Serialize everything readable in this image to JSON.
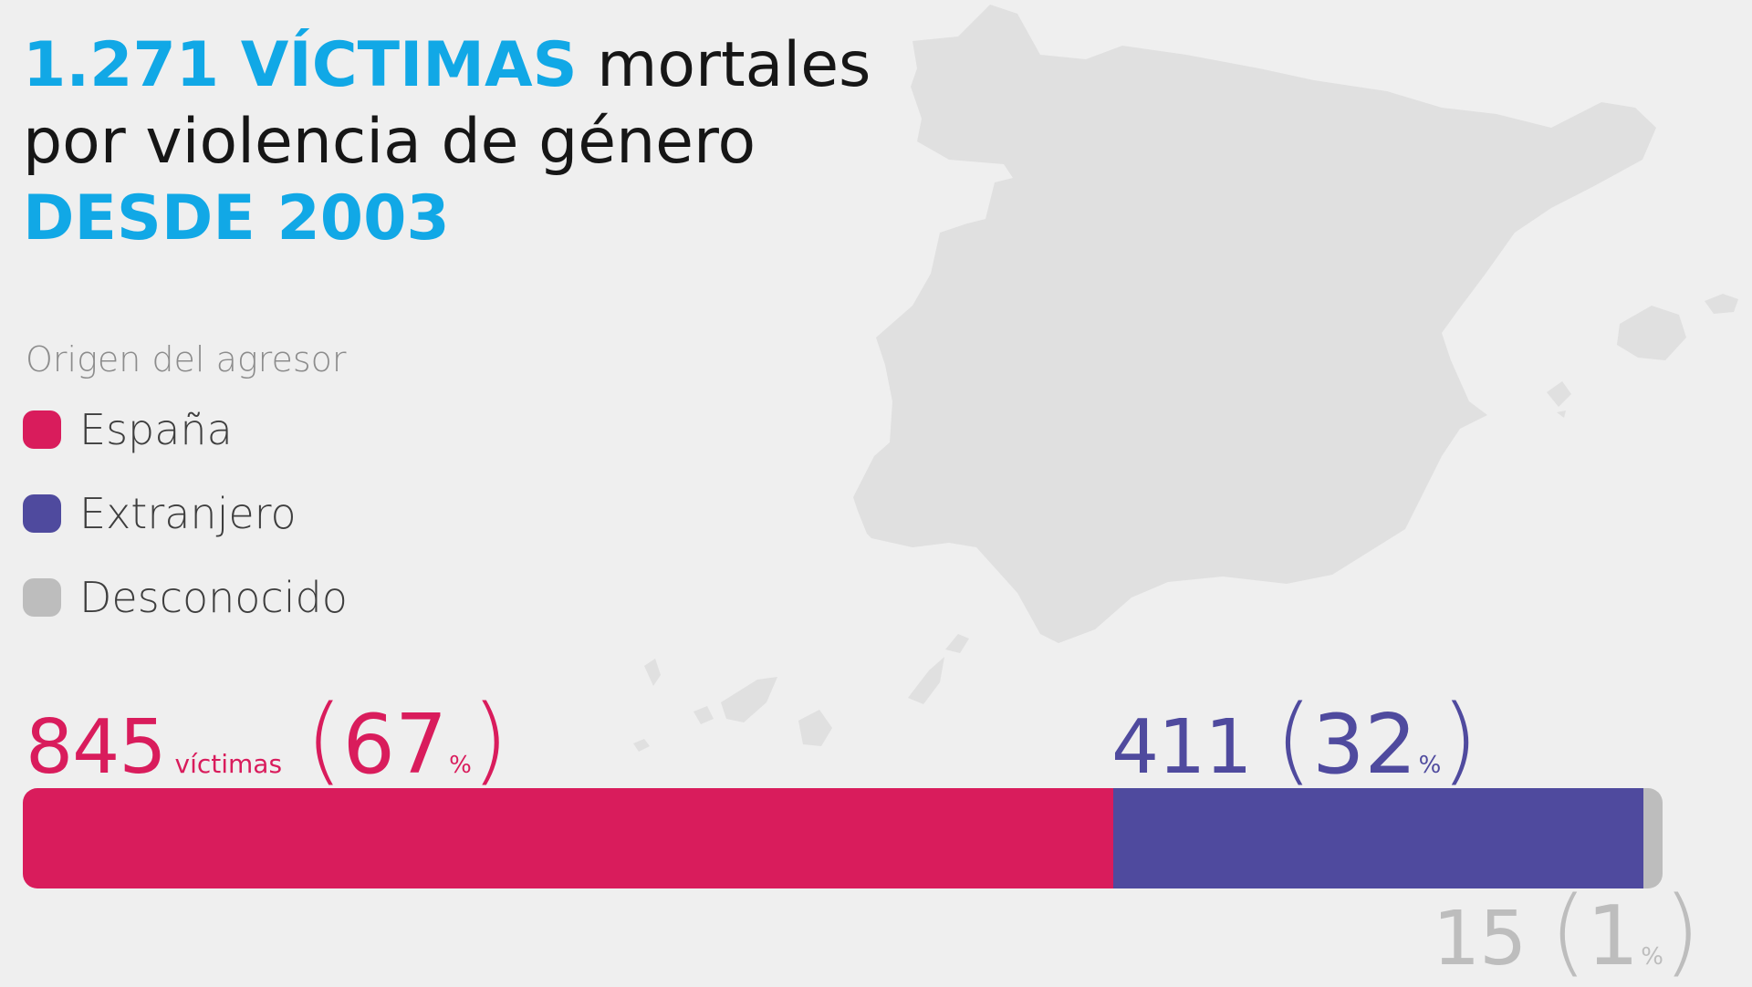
{
  "title": {
    "line1_highlight": "1.271 VÍCTIMAS",
    "line1_rest": " mortales",
    "line2": "por violencia de género",
    "line3_highlight": "DESDE 2003"
  },
  "legend": {
    "title": "Origen del agresor",
    "items": [
      {
        "label": "España",
        "color": "#d91c5c"
      },
      {
        "label": "Extranjero",
        "color": "#4f4a9e"
      },
      {
        "label": "Desconocido",
        "color": "#bdbdbd"
      }
    ]
  },
  "chart_data": {
    "type": "bar",
    "orientation": "horizontal-stacked",
    "total": 1271,
    "categories": [
      "España",
      "Extranjero",
      "Desconocido"
    ],
    "values": [
      845,
      411,
      15
    ],
    "percentages": [
      67,
      32,
      1
    ],
    "colors": [
      "#d91c5c",
      "#4f4a9e",
      "#bdbdbd"
    ],
    "labels": {
      "espana": {
        "count": "845",
        "unit": "víctimas",
        "open": "(",
        "pct": "67",
        "pct_sign": "%",
        "close": ")"
      },
      "extranjero": {
        "count": "411",
        "open": "(",
        "pct": "32",
        "pct_sign": "%",
        "close": ")"
      },
      "desconocido": {
        "count": "15",
        "open": "(",
        "pct": "1",
        "pct_sign": "%",
        "close": ")"
      }
    }
  },
  "map": {
    "color": "#e0e0e0"
  }
}
